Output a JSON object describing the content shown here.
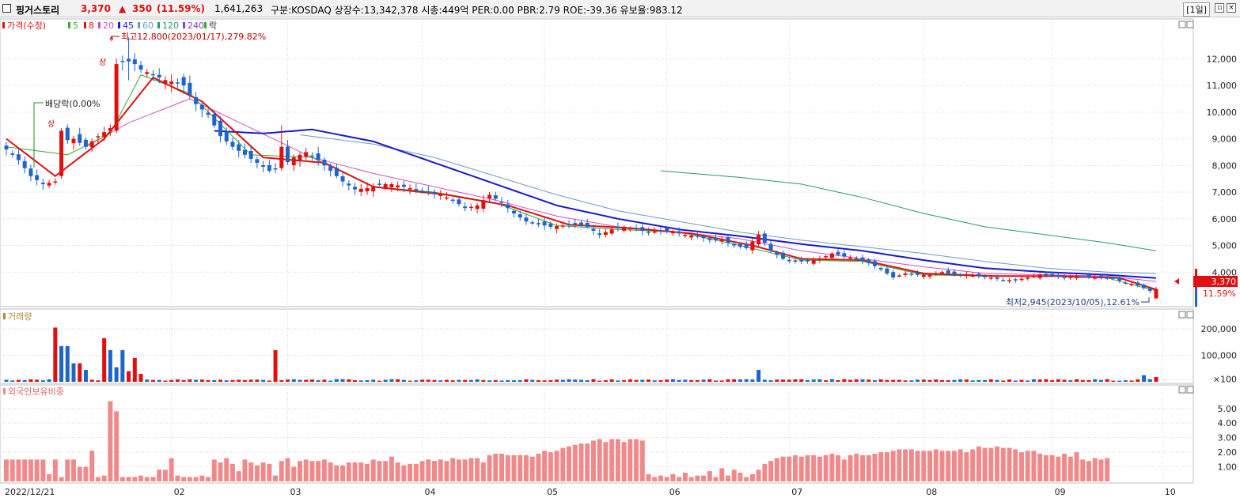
{
  "header": {
    "stock_name": "핑거스토리",
    "price": "3,370",
    "change_arrow": "▲",
    "change": "350",
    "change_pct": "(11.59%)",
    "volume": "1,641,263",
    "info": "구분:KOSDAQ 상장수:13,342,378 시총:449억 PER:0.00 PBR:2.79 ROE:-39.36 유보율:983.12",
    "period": "[1일]"
  },
  "legends": {
    "price_items": [
      "가격(수정)",
      "5",
      "8",
      "20",
      "45",
      "60",
      "120",
      "240",
      "락"
    ],
    "volume": "거래량",
    "foreign": "외국인보유비중"
  },
  "annotations": {
    "high": "최고12,800(2023/01/17),279.82%",
    "low": "최저2,945(2023/10/05),12.61%",
    "dividend": "배당락(0.00%",
    "up_mark": "상",
    "last_price": "3,370",
    "last_pct": "11.59%"
  },
  "colors": {
    "up": "#e01010",
    "down": "#1f64c8",
    "ma5": "#2fae2f",
    "ma8": "#e01010",
    "ma20": "#d04fc0",
    "ma45": "#1a1acc",
    "ma60": "#6a9ac8",
    "ma120": "#2a9a6a",
    "grid": "#d6d6d6",
    "foreign_bar": "#f08a8a"
  },
  "chart_data": [
    {
      "type": "candlestick",
      "panel": "price",
      "x_axis": {
        "start": "2022/12/21",
        "tick_labels": [
          "2022/12/21",
          "02",
          "03",
          "04",
          "05",
          "06",
          "07",
          "08",
          "09",
          "10"
        ]
      },
      "y_ticks": [
        "12,000",
        "11,000",
        "10,000",
        "9,000",
        "8,000",
        "7,000",
        "6,000",
        "5,000",
        "4,000"
      ],
      "ylim": [
        3000,
        12900
      ],
      "close_path": [
        [
          0,
          8600
        ],
        [
          2,
          8200
        ],
        [
          4,
          7600
        ],
        [
          6,
          7300
        ],
        [
          8,
          7400
        ],
        [
          9,
          8900
        ],
        [
          11,
          9000
        ],
        [
          13,
          8700
        ],
        [
          15,
          9100
        ],
        [
          17,
          9400
        ],
        [
          18,
          11800
        ],
        [
          20,
          12000
        ],
        [
          22,
          11600
        ],
        [
          24,
          11400
        ],
        [
          26,
          11200
        ],
        [
          28,
          11100
        ],
        [
          29,
          11000
        ],
        [
          31,
          10300
        ],
        [
          33,
          9900
        ],
        [
          35,
          9100
        ],
        [
          37,
          8700
        ],
        [
          39,
          8400
        ],
        [
          41,
          8100
        ],
        [
          43,
          7800
        ],
        [
          45,
          7950
        ],
        [
          47,
          8300
        ],
        [
          49,
          8500
        ],
        [
          51,
          8200
        ],
        [
          53,
          7800
        ],
        [
          55,
          7400
        ],
        [
          57,
          7100
        ],
        [
          59,
          7150
        ],
        [
          61,
          7300
        ],
        [
          63,
          7300
        ],
        [
          65,
          7200
        ],
        [
          67,
          7100
        ],
        [
          69,
          7000
        ],
        [
          71,
          6900
        ],
        [
          73,
          6700
        ],
        [
          75,
          6400
        ],
        [
          77,
          6500
        ],
        [
          79,
          6900
        ],
        [
          81,
          6600
        ],
        [
          83,
          6200
        ],
        [
          85,
          5900
        ],
        [
          87,
          5800
        ],
        [
          89,
          5700
        ],
        [
          91,
          5750
        ],
        [
          93,
          5800
        ],
        [
          95,
          5700
        ],
        [
          97,
          5400
        ],
        [
          99,
          5600
        ],
        [
          101,
          5700
        ],
        [
          103,
          5600
        ],
        [
          105,
          5500
        ],
        [
          107,
          5550
        ],
        [
          109,
          5500
        ],
        [
          111,
          5400
        ],
        [
          113,
          5350
        ],
        [
          115,
          5200
        ],
        [
          117,
          5200
        ],
        [
          119,
          5000
        ],
        [
          121,
          4900
        ],
        [
          123,
          5400
        ],
        [
          125,
          4800
        ],
        [
          127,
          4500
        ],
        [
          129,
          4400
        ],
        [
          131,
          4400
        ],
        [
          133,
          4500
        ],
        [
          135,
          4700
        ],
        [
          137,
          4600
        ],
        [
          139,
          4500
        ],
        [
          141,
          4350
        ],
        [
          143,
          4100
        ],
        [
          145,
          3800
        ],
        [
          147,
          3950
        ],
        [
          149,
          3900
        ],
        [
          151,
          3900
        ],
        [
          153,
          4000
        ],
        [
          155,
          3900
        ],
        [
          157,
          3900
        ],
        [
          159,
          3850
        ],
        [
          161,
          3800
        ],
        [
          163,
          3700
        ],
        [
          165,
          3700
        ],
        [
          167,
          3800
        ],
        [
          169,
          3900
        ],
        [
          171,
          3850
        ],
        [
          173,
          3800
        ],
        [
          175,
          3850
        ],
        [
          177,
          3800
        ],
        [
          179,
          3800
        ],
        [
          181,
          3750
        ],
        [
          183,
          3600
        ],
        [
          185,
          3500
        ],
        [
          187,
          3300
        ],
        [
          188,
          3370
        ]
      ],
      "highlight_candles": [
        {
          "i": 9,
          "o": 7600,
          "c": 9300,
          "h": 9400,
          "l": 7500
        },
        {
          "i": 18,
          "o": 9300,
          "c": 11800,
          "h": 12000,
          "l": 9200
        },
        {
          "i": 20,
          "o": 12000,
          "c": 11900,
          "h": 12800,
          "l": 11200
        },
        {
          "i": 45,
          "o": 7900,
          "c": 8700,
          "h": 9500,
          "l": 7800
        },
        {
          "i": 188,
          "o": 3020,
          "c": 3370,
          "h": 3450,
          "l": 2990
        }
      ],
      "ma_paths": {
        "ma5": [
          [
            0,
            8700
          ],
          [
            10,
            8400
          ],
          [
            17,
            9200
          ],
          [
            22,
            11400
          ],
          [
            30,
            10700
          ],
          [
            40,
            8400
          ],
          [
            50,
            8300
          ],
          [
            60,
            7200
          ],
          [
            70,
            7000
          ],
          [
            80,
            6600
          ],
          [
            90,
            5750
          ],
          [
            100,
            5600
          ],
          [
            110,
            5500
          ],
          [
            120,
            5000
          ],
          [
            130,
            4450
          ],
          [
            140,
            4400
          ],
          [
            150,
            3900
          ],
          [
            160,
            3850
          ],
          [
            170,
            3850
          ],
          [
            180,
            3780
          ],
          [
            188,
            3300
          ]
        ],
        "ma8": [
          [
            0,
            9000
          ],
          [
            8,
            7600
          ],
          [
            16,
            9000
          ],
          [
            24,
            11300
          ],
          [
            32,
            10400
          ],
          [
            42,
            8300
          ],
          [
            52,
            8100
          ],
          [
            60,
            7200
          ],
          [
            72,
            6900
          ],
          [
            82,
            6500
          ],
          [
            92,
            5780
          ],
          [
            102,
            5650
          ],
          [
            112,
            5450
          ],
          [
            122,
            5000
          ],
          [
            130,
            4500
          ],
          [
            140,
            4450
          ],
          [
            150,
            3950
          ],
          [
            162,
            3850
          ],
          [
            172,
            3850
          ],
          [
            182,
            3780
          ],
          [
            188,
            3350
          ]
        ],
        "ma20": [
          [
            13,
            8700
          ],
          [
            20,
            9600
          ],
          [
            30,
            10500
          ],
          [
            40,
            9400
          ],
          [
            50,
            8300
          ],
          [
            60,
            7700
          ],
          [
            70,
            7200
          ],
          [
            80,
            6700
          ],
          [
            90,
            6100
          ],
          [
            100,
            5700
          ],
          [
            110,
            5500
          ],
          [
            120,
            5250
          ],
          [
            130,
            4800
          ],
          [
            140,
            4500
          ],
          [
            150,
            4200
          ],
          [
            160,
            3950
          ],
          [
            170,
            3900
          ],
          [
            180,
            3850
          ],
          [
            188,
            3650
          ]
        ],
        "ma45": [
          [
            34,
            9300
          ],
          [
            42,
            9200
          ],
          [
            50,
            9350
          ],
          [
            60,
            8900
          ],
          [
            70,
            8100
          ],
          [
            80,
            7300
          ],
          [
            90,
            6500
          ],
          [
            100,
            6000
          ],
          [
            110,
            5600
          ],
          [
            120,
            5350
          ],
          [
            130,
            5050
          ],
          [
            140,
            4800
          ],
          [
            150,
            4450
          ],
          [
            160,
            4150
          ],
          [
            170,
            4000
          ],
          [
            180,
            3900
          ],
          [
            188,
            3780
          ]
        ],
        "ma60": [
          [
            48,
            9150
          ],
          [
            60,
            8800
          ],
          [
            70,
            8300
          ],
          [
            80,
            7600
          ],
          [
            90,
            6900
          ],
          [
            100,
            6300
          ],
          [
            110,
            5900
          ],
          [
            120,
            5500
          ],
          [
            130,
            5200
          ],
          [
            140,
            4950
          ],
          [
            150,
            4700
          ],
          [
            160,
            4400
          ],
          [
            170,
            4150
          ],
          [
            180,
            4000
          ],
          [
            188,
            3950
          ]
        ],
        "ma120": [
          [
            107,
            7800
          ],
          [
            120,
            7550
          ],
          [
            130,
            7300
          ],
          [
            140,
            6800
          ],
          [
            150,
            6200
          ],
          [
            160,
            5700
          ],
          [
            170,
            5400
          ],
          [
            180,
            5100
          ],
          [
            188,
            4800
          ]
        ]
      }
    },
    {
      "type": "bar",
      "panel": "volume",
      "y_ticks": [
        "200,000",
        "100,000",
        "×100"
      ],
      "ylim": [
        0,
        230000
      ],
      "highlight_bars": [
        {
          "i": 8,
          "v": 205000,
          "up": true
        },
        {
          "i": 9,
          "v": 135000,
          "up": false
        },
        {
          "i": 10,
          "v": 135000,
          "up": false
        },
        {
          "i": 11,
          "v": 70000,
          "up": false
        },
        {
          "i": 12,
          "v": 70000,
          "up": true
        },
        {
          "i": 13,
          "v": 45000,
          "up": false
        },
        {
          "i": 16,
          "v": 165000,
          "up": true
        },
        {
          "i": 17,
          "v": 120000,
          "up": false
        },
        {
          "i": 18,
          "v": 55000,
          "up": false
        },
        {
          "i": 19,
          "v": 120000,
          "up": false
        },
        {
          "i": 20,
          "v": 40000,
          "up": true
        },
        {
          "i": 21,
          "v": 90000,
          "up": true
        },
        {
          "i": 22,
          "v": 30000,
          "up": true
        },
        {
          "i": 44,
          "v": 120000,
          "up": true
        },
        {
          "i": 123,
          "v": 45000,
          "up": false
        },
        {
          "i": 186,
          "v": 25000,
          "up": false
        },
        {
          "i": 188,
          "v": 18000,
          "up": true
        }
      ],
      "base_level": 4000
    },
    {
      "type": "bar",
      "panel": "foreign_ownership",
      "y_ticks": [
        "5.00",
        "4.00",
        "3.00",
        "2.00",
        "1.00"
      ],
      "ylim": [
        0,
        5.8
      ],
      "values": [
        1.5,
        1.5,
        1.5,
        1.5,
        1.5,
        1.5,
        1.5,
        0.5,
        1.5,
        0.3,
        1.5,
        1.5,
        1.0,
        1.0,
        2.1,
        0.3,
        0.4,
        5.5,
        4.8,
        0.3,
        0.3,
        0.3,
        0.4,
        0.3,
        0.3,
        0.8,
        0.8,
        1.6,
        0.4,
        0.3,
        0.3,
        0.3,
        0.4,
        0.3,
        1.5,
        1.3,
        1.6,
        1.2,
        0.7,
        1.5,
        1.3,
        1.1,
        1.3,
        1.2,
        0.4,
        1.4,
        1.6,
        1.0,
        1.4,
        1.5,
        1.4,
        1.4,
        1.5,
        1.3,
        1.1,
        1.1,
        1.3,
        1.3,
        1.3,
        1.2,
        1.5,
        1.4,
        1.4,
        1.7,
        1.3,
        1.1,
        1.2,
        1.2,
        1.4,
        1.5,
        1.4,
        1.5,
        1.4,
        1.6,
        1.5,
        1.5,
        1.6,
        1.6,
        1.3,
        1.8,
        1.9,
        1.9,
        1.8,
        1.8,
        1.8,
        1.8,
        1.7,
        1.9,
        2.1,
        2.0,
        2.1,
        2.3,
        2.4,
        2.5,
        2.6,
        2.6,
        2.8,
        2.9,
        2.7,
        2.9,
        2.9,
        2.7,
        2.9,
        2.9,
        2.8,
        0.5,
        0.3,
        0.4,
        0.3,
        0.5,
        0.3,
        0.6,
        0.3,
        0.4,
        0.4,
        0.7,
        0.3,
        0.9,
        0.4,
        0.8,
        0.6,
        0.3,
        0.5,
        0.8,
        1.2,
        1.4,
        1.6,
        1.7,
        1.7,
        1.8,
        1.7,
        1.8,
        1.8,
        1.7,
        1.8,
        1.9,
        1.8,
        1.5,
        1.8,
        1.9,
        1.8,
        1.8,
        1.9,
        2.0,
        2.0,
        2.1,
        2.2,
        2.2,
        2.2,
        2.1,
        2.1,
        2.1,
        2.2,
        2.1,
        2.1,
        2.1,
        2.2,
        2.0,
        2.2,
        2.4,
        2.3,
        2.3,
        2.4,
        2.3,
        2.3,
        2.2,
        2.0,
        2.1,
        2.1,
        1.9,
        1.8,
        1.8,
        1.7,
        1.9,
        1.7,
        2.0,
        1.5,
        1.4,
        1.6,
        1.5,
        1.6
      ]
    }
  ]
}
